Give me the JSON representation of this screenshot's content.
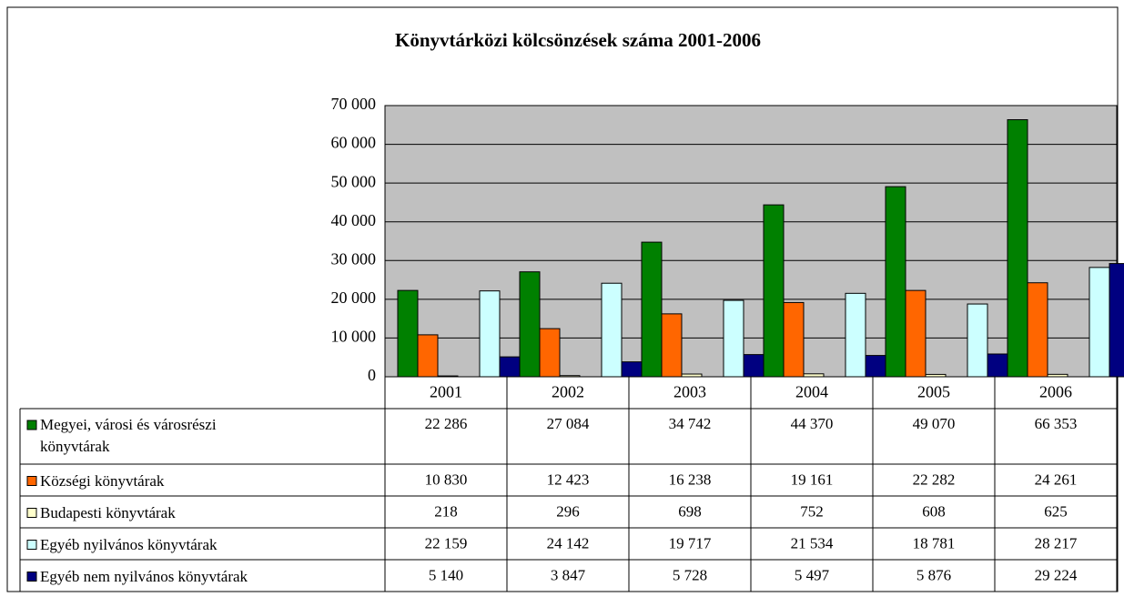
{
  "chart_data": {
    "type": "bar",
    "title": "Könyvtárközi kölcsönzések száma 2001-2006",
    "categories": [
      "2001",
      "2002",
      "2003",
      "2004",
      "2005",
      "2006"
    ],
    "series": [
      {
        "name": "Megyei, városi és városrészi könyvtárak",
        "color": "#008000",
        "values": [
          22286,
          27084,
          34742,
          44370,
          49070,
          66353
        ],
        "value_labels": [
          "22 286",
          "27 084",
          "34 742",
          "44 370",
          "49 070",
          "66 353"
        ]
      },
      {
        "name": "Községi könyvtárak",
        "color": "#ff6600",
        "values": [
          10830,
          12423,
          16238,
          19161,
          22282,
          24261
        ],
        "value_labels": [
          "10 830",
          "12 423",
          "16 238",
          "19 161",
          "22 282",
          "24 261"
        ]
      },
      {
        "name": "Budapesti könyvtárak",
        "color": "#ffffcc",
        "values": [
          218,
          296,
          698,
          752,
          608,
          625
        ],
        "value_labels": [
          "218",
          "296",
          "698",
          "752",
          "608",
          "625"
        ]
      },
      {
        "name": "Egyéb nyilvános könyvtárak",
        "color": "#ccffff",
        "values": [
          22159,
          24142,
          19717,
          21534,
          18781,
          28217
        ],
        "value_labels": [
          "22 159",
          "24 142",
          "19 717",
          "21 534",
          "18 781",
          "28 217"
        ]
      },
      {
        "name": "Egyéb nem nyilvános könyvtárak",
        "color": "#000080",
        "values": [
          5140,
          3847,
          5728,
          5497,
          5876,
          29224
        ],
        "value_labels": [
          "5 140",
          "3 847",
          "5 728",
          "5 497",
          "5 876",
          "29 224"
        ]
      }
    ],
    "ylim": [
      0,
      70000
    ],
    "yticks": [
      0,
      {
        "value": 10000,
        "label": "10 000"
      },
      {
        "value": 20000,
        "label": "20 000"
      },
      {
        "value": 30000,
        "label": "30 000"
      },
      {
        "value": 40000,
        "label": "40 000"
      },
      {
        "value": 50000,
        "label": "50 000"
      },
      {
        "value": 60000,
        "label": "60 000"
      },
      {
        "value": 70000,
        "label": "70 000"
      }
    ],
    "grid": true,
    "plot_background": "#c0c0c0"
  }
}
